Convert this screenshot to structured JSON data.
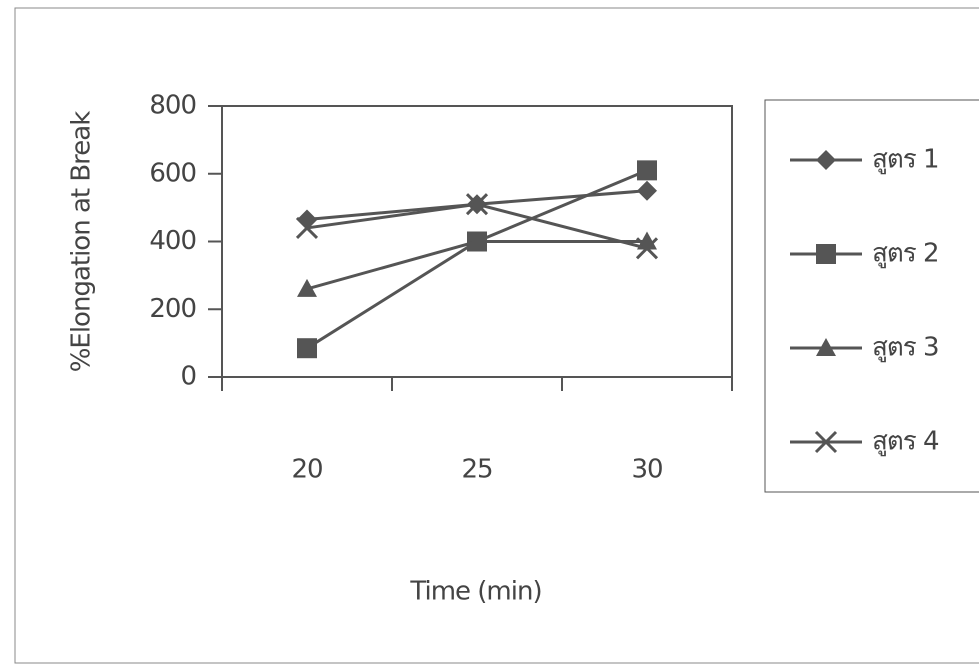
{
  "chart_data": {
    "type": "line",
    "x_label": "Time (min)",
    "y_label": "%Elongation at Break",
    "categories": [
      "20",
      "25",
      "30"
    ],
    "series": [
      {
        "name": "สูตร 1",
        "color": "#555555",
        "marker": "diamond",
        "values": [
          465,
          510,
          550
        ]
      },
      {
        "name": "สูตร 2",
        "color": "#555555",
        "marker": "square",
        "values": [
          85,
          400,
          610
        ]
      },
      {
        "name": "สูตร 3",
        "color": "#555555",
        "marker": "triangle",
        "values": [
          260,
          400,
          400
        ]
      },
      {
        "name": "สูตร 4",
        "color": "#555555",
        "marker": "x",
        "values": [
          440,
          510,
          380
        ]
      }
    ],
    "ylim": [
      0,
      800
    ],
    "yticks": [
      0,
      200,
      400,
      600,
      800
    ],
    "grid": false,
    "legend": "right"
  }
}
